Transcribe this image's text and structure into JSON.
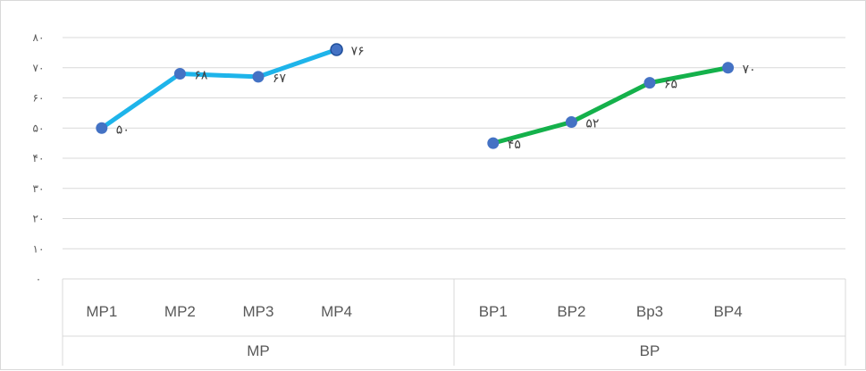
{
  "chart_data": {
    "type": "line",
    "y_ticks": [
      "٠",
      "١٠",
      "٢٠",
      "٣٠",
      "۴٠",
      "۵٠",
      "۶٠",
      "٧٠",
      "٨٠"
    ],
    "ylim": [
      0,
      80
    ],
    "grid": true,
    "categories": [
      "MP1",
      "MP2",
      "MP3",
      "MP4",
      "BP1",
      "BP2",
      "Bp3",
      "BP4"
    ],
    "groups": [
      {
        "label": "MP",
        "categories": [
          "MP1",
          "MP2",
          "MP3",
          "MP4"
        ]
      },
      {
        "label": "BP",
        "categories": [
          "BP1",
          "BP2",
          "Bp3",
          "BP4"
        ]
      }
    ],
    "series": [
      {
        "color": "#1eb4ea",
        "x": [
          "MP1",
          "MP2",
          "MP3",
          "MP4"
        ],
        "values": [
          50,
          68,
          67,
          76
        ],
        "data_labels": [
          "۵٠",
          "۶٨",
          "۶٧",
          "٧۶"
        ]
      },
      {
        "color": "#14b14b",
        "x": [
          "BP1",
          "BP2",
          "Bp3",
          "BP4"
        ],
        "values": [
          45,
          52,
          65,
          70
        ],
        "data_labels": [
          "۴۵",
          "۵٢",
          "۶۵",
          "٧٠"
        ]
      }
    ],
    "marker_color": "#4472c4",
    "legend": "none"
  }
}
